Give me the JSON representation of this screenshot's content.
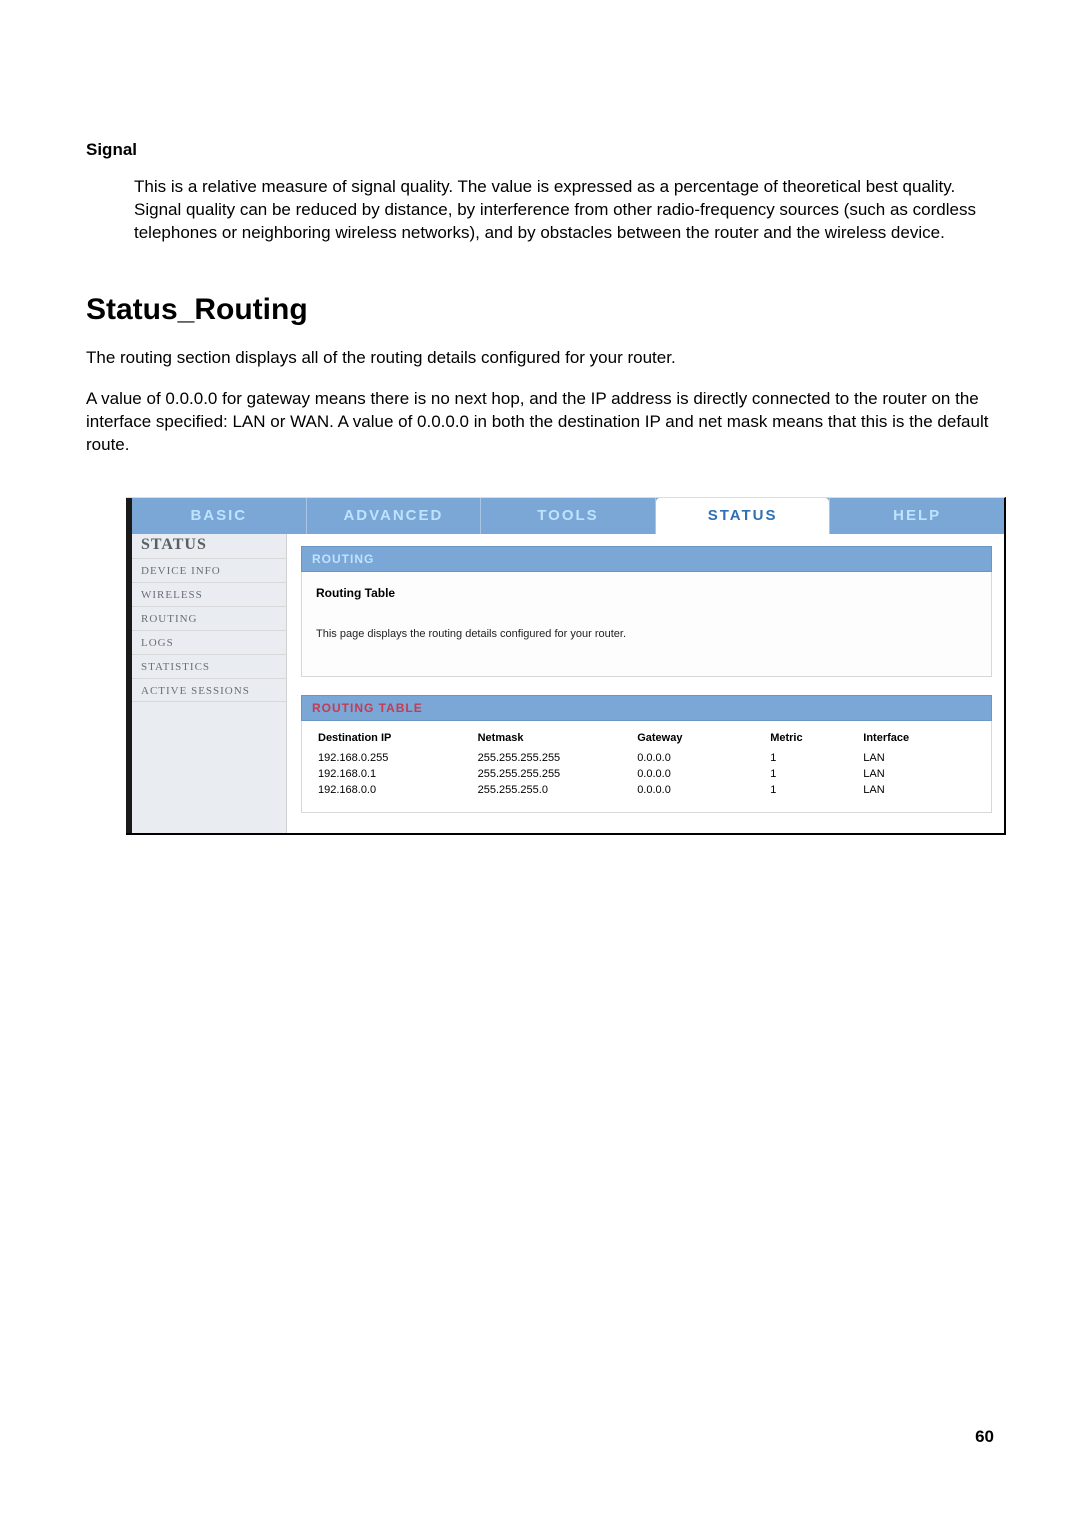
{
  "doc": {
    "signal": {
      "heading": "Signal",
      "body": "This is a relative measure of signal quality. The value is expressed as a percentage of theoretical best quality. Signal quality can be reduced by distance, by interference from other radio-frequency sources (such as cordless telephones or neighboring wireless networks), and by obstacles between the router and the wireless device."
    },
    "routing": {
      "heading": "Status_Routing",
      "p1": "The routing section displays all of the routing details configured for your router.",
      "p2": "A value of 0.0.0.0 for gateway means there is no next hop, and the IP address is directly connected to the router on the interface specified: LAN or WAN. A value of 0.0.0.0 in both the destination IP and net mask means that this is the default route."
    },
    "page_number": "60"
  },
  "ui": {
    "colors": {
      "tab_bg": "#7aa7d6",
      "tab_text": "#bfe3ff",
      "tab_active_text": "#2f6fb5",
      "sidebar_bg": "#e9edf1",
      "sidebar_text": "#6b6f73",
      "brand_text": "#5a5e62",
      "panel_border": "#d7d7d7",
      "accent_text": "#c73a52"
    },
    "tabs": {
      "items": [
        "BASIC",
        "ADVANCED",
        "TOOLS",
        "STATUS",
        "HELP"
      ],
      "active_index": 3
    },
    "sidebar": {
      "brand": "STATUS",
      "items": [
        "DEVICE INFO",
        "WIRELESS",
        "ROUTING",
        "LOGS",
        "STATISTICS",
        "ACTIVE SESSIONS"
      ]
    },
    "panel1": {
      "bar": "ROUTING",
      "title": "Routing Table",
      "desc": "This page displays the routing details configured for your router."
    },
    "panel2": {
      "bar": "ROUTING TABLE",
      "columns": [
        "Destination IP",
        "Netmask",
        "Gateway",
        "Metric",
        "Interface"
      ],
      "col_widths": [
        "24%",
        "24%",
        "20%",
        "14%",
        "18%"
      ],
      "rows": [
        [
          "192.168.0.255",
          "255.255.255.255",
          "0.0.0.0",
          "1",
          "LAN"
        ],
        [
          "192.168.0.1",
          "255.255.255.255",
          "0.0.0.0",
          "1",
          "LAN"
        ],
        [
          "192.168.0.0",
          "255.255.255.0",
          "0.0.0.0",
          "1",
          "LAN"
        ]
      ]
    }
  }
}
